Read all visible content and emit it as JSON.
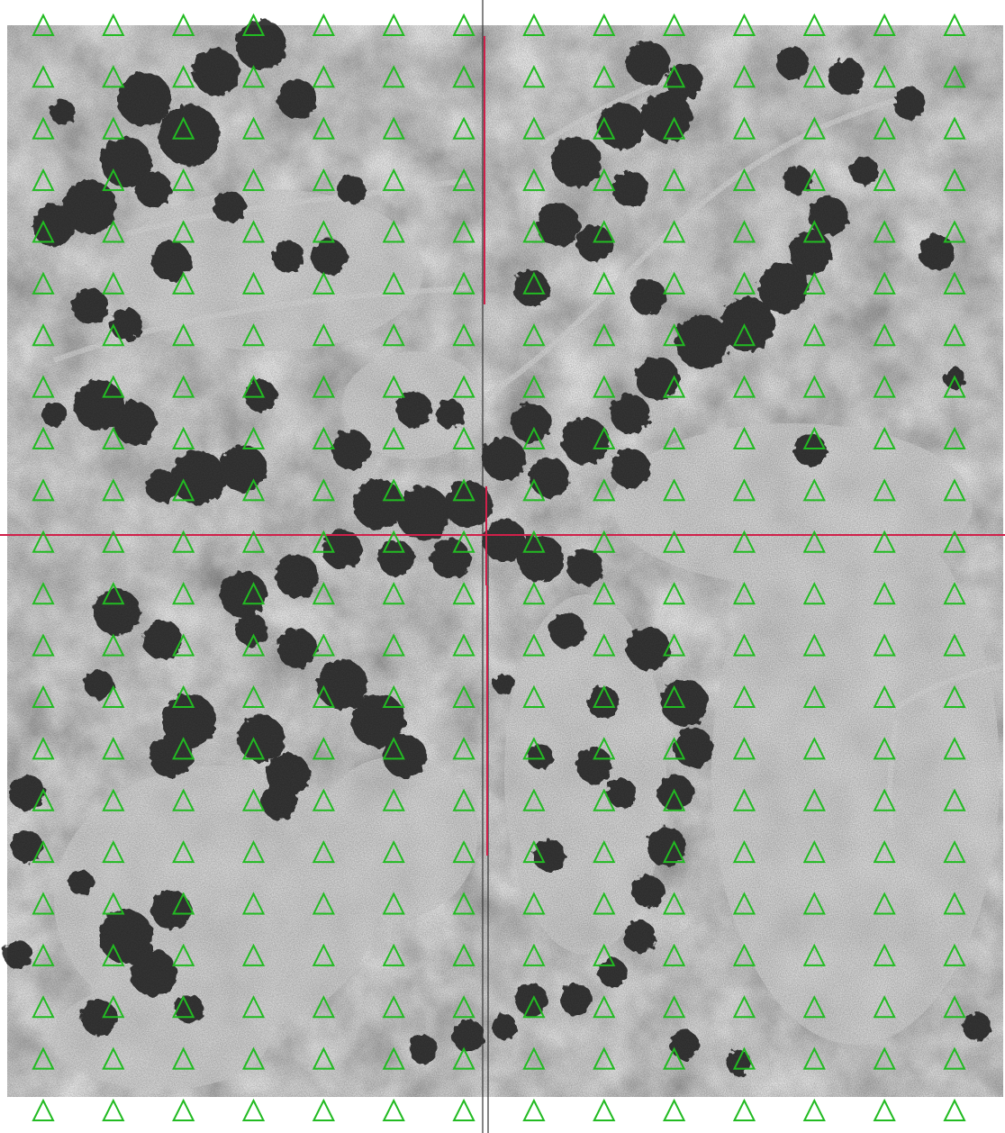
{
  "image": {
    "content": "aerial-photograph",
    "rendering": "grayscale"
  },
  "overlay": {
    "marker_shape": "triangle-outline",
    "marker_color": "#22bb22",
    "grid_columns": 14,
    "grid_rows": 22,
    "crosshair_color": "#d0204a",
    "divider_color": "#333333"
  }
}
